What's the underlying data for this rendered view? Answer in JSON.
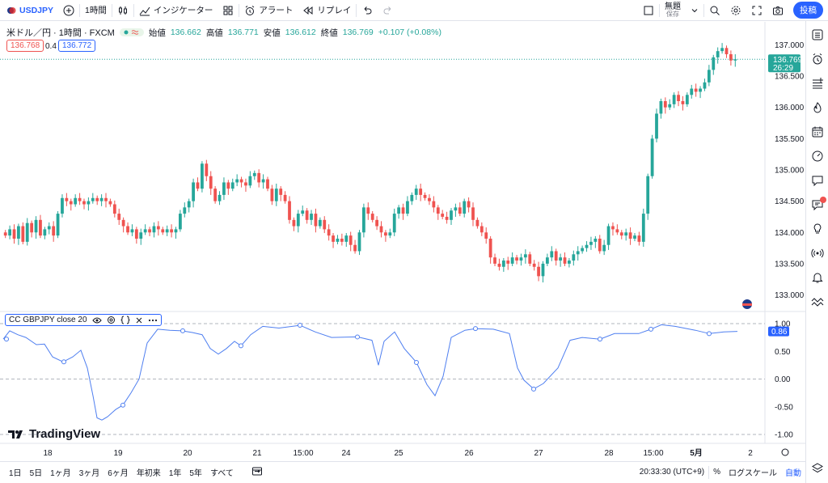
{
  "topbar": {
    "symbol": "USDJPY",
    "interval": "1時間",
    "indicators_label": "インジケーター",
    "alert_label": "アラート",
    "replay_label": "リプレイ",
    "layout_name": "無題",
    "layout_status": "保存",
    "post_label": "投稿"
  },
  "legend": {
    "title": "米ドル／円 · 1時間 · FXCM",
    "open_label": "始値",
    "open": "136.662",
    "high_label": "高値",
    "high": "136.771",
    "low_label": "安値",
    "low": "136.612",
    "close_label": "終値",
    "close": "136.769",
    "change": "+0.107 (+0.08%)",
    "bid": "136.768",
    "spread": "0.4",
    "ask": "136.772"
  },
  "price_axis": {
    "ticks": [
      "137.000",
      "136.500",
      "136.000",
      "135.500",
      "135.000",
      "134.500",
      "134.000",
      "133.500",
      "133.000"
    ],
    "current_price": "136.769",
    "countdown": "26:29"
  },
  "indicator": {
    "label": "CC GBPJPY close 20",
    "ticks": [
      "1.00",
      "0.50",
      "0.00",
      "-0.50",
      "-1.00"
    ],
    "current_value": "0.86"
  },
  "time_axis": [
    "18",
    "19",
    "20",
    "21",
    "15:00",
    "24",
    "25",
    "26",
    "27",
    "28",
    "15:00",
    "5月",
    "2"
  ],
  "bottombar": {
    "ranges": [
      "1日",
      "5日",
      "1ヶ月",
      "3ヶ月",
      "6ヶ月",
      "年初来",
      "1年",
      "5年",
      "すべて"
    ],
    "time": "20:33:30 (UTC+9)",
    "percent": "%",
    "log_scale": "ログスケール",
    "auto": "自動"
  },
  "watermark": "TradingView",
  "colors": {
    "up": "#26a69a",
    "down": "#ef5350",
    "accent": "#2962ff",
    "cc_line": "#4f7ff0"
  },
  "chart_data": {
    "type": "candlestick",
    "ylim": [
      132.8,
      137.2
    ],
    "current_price": 136.769,
    "closes": [
      133.95,
      134.05,
      133.9,
      134.1,
      133.85,
      134.15,
      134.0,
      134.2,
      133.95,
      134.05,
      134.1,
      133.95,
      134.3,
      134.55,
      134.5,
      134.45,
      134.55,
      134.5,
      134.45,
      134.5,
      134.55,
      134.5,
      134.55,
      134.5,
      134.45,
      134.3,
      134.2,
      134.1,
      134.0,
      134.05,
      133.9,
      134.0,
      134.05,
      134.0,
      134.1,
      134.05,
      134.0,
      134.05,
      134.0,
      134.05,
      134.3,
      134.4,
      134.5,
      134.8,
      134.7,
      135.1,
      134.9,
      134.7,
      134.5,
      134.6,
      134.8,
      134.7,
      134.8,
      134.85,
      134.8,
      134.75,
      134.9,
      134.95,
      134.8,
      134.85,
      134.7,
      134.5,
      134.7,
      134.6,
      134.5,
      134.2,
      134.1,
      134.3,
      134.35,
      134.2,
      134.3,
      134.1,
      134.2,
      134.05,
      133.95,
      133.85,
      133.9,
      133.85,
      133.95,
      133.8,
      133.7,
      134.0,
      134.4,
      134.3,
      134.2,
      134.1,
      134.0,
      133.95,
      134.0,
      134.3,
      134.4,
      134.3,
      134.5,
      134.6,
      134.7,
      134.6,
      134.55,
      134.5,
      134.4,
      134.3,
      134.25,
      134.2,
      134.35,
      134.4,
      134.3,
      134.5,
      134.4,
      134.2,
      134.1,
      134.0,
      133.9,
      133.6,
      133.5,
      133.45,
      133.55,
      133.5,
      133.6,
      133.55,
      133.6,
      133.65,
      133.5,
      133.45,
      133.3,
      133.5,
      133.6,
      133.7,
      133.55,
      133.6,
      133.5,
      133.55,
      133.65,
      133.7,
      133.75,
      133.8,
      133.85,
      133.9,
      133.7,
      133.8,
      134.1,
      134.05,
      134.0,
      133.95,
      134.0,
      133.9,
      133.95,
      133.85,
      134.3,
      134.9,
      135.5,
      135.9,
      136.1,
      136.0,
      136.05,
      136.2,
      136.1,
      136.05,
      136.2,
      136.3,
      136.25,
      136.3,
      136.4,
      136.6,
      136.8,
      136.9,
      136.95,
      136.85,
      136.75,
      136.77
    ]
  }
}
